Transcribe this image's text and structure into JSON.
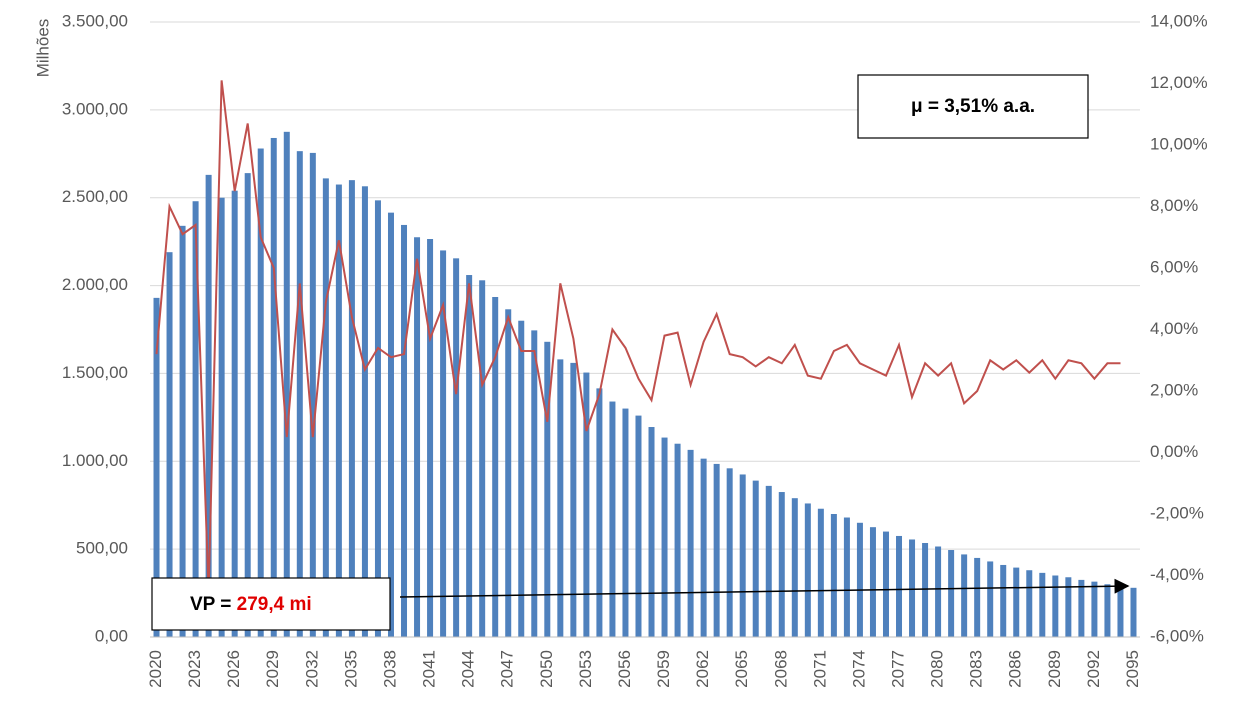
{
  "chart_data": {
    "type": "bar-line",
    "y_axis_label": "Milhões",
    "annotation_mu": "μ = 3,51% a.a.",
    "annotation_vp_label": "VP = ",
    "annotation_vp_value": "279,4 mi",
    "categories": [
      "2020",
      null,
      null,
      "2023",
      null,
      null,
      "2026",
      null,
      null,
      "2029",
      null,
      null,
      "2032",
      null,
      null,
      "2035",
      null,
      null,
      "2038",
      null,
      null,
      "2041",
      null,
      null,
      "2044",
      null,
      null,
      "2047",
      null,
      null,
      "2050",
      null,
      null,
      "2053",
      null,
      null,
      "2056",
      null,
      null,
      "2059",
      null,
      null,
      "2062",
      null,
      null,
      "2065",
      null,
      null,
      "2068",
      null,
      null,
      "2071",
      null,
      null,
      "2074",
      null,
      null,
      "2077",
      null,
      null,
      "2080",
      null,
      null,
      "2083",
      null,
      null,
      "2086",
      null,
      null,
      "2089",
      null,
      null,
      "2092",
      null,
      null,
      "2095"
    ],
    "series": [
      {
        "type": "bar",
        "color": "#4f81bd",
        "values": [
          1930,
          2190,
          2340,
          2480,
          2630,
          2500,
          2540,
          2640,
          2780,
          2840,
          2875,
          2765,
          2755,
          2610,
          2575,
          2600,
          2565,
          2485,
          2415,
          2345,
          2275,
          2265,
          2200,
          2155,
          2060,
          2030,
          1935,
          1865,
          1800,
          1745,
          1680,
          1580,
          1560,
          1505,
          1415,
          1340,
          1300,
          1260,
          1195,
          1135,
          1100,
          1065,
          1015,
          985,
          960,
          925,
          890,
          860,
          825,
          790,
          760,
          730,
          700,
          680,
          650,
          625,
          600,
          575,
          555,
          535,
          515,
          495,
          470,
          450,
          430,
          410,
          395,
          380,
          365,
          350,
          340,
          325,
          315,
          300,
          290,
          280
        ]
      },
      {
        "type": "line",
        "axis": "y2",
        "color": "#c0504d",
        "values": [
          3.2,
          8.0,
          7.1,
          7.4,
          -4.5,
          12.1,
          8.5,
          10.7,
          7.0,
          6.0,
          0.5,
          5.5,
          0.5,
          4.9,
          6.9,
          4.4,
          2.7,
          3.4,
          3.1,
          3.2,
          6.3,
          3.7,
          4.8,
          1.9,
          5.5,
          2.2,
          3.1,
          4.4,
          3.3,
          3.3,
          1.0,
          5.5,
          3.7,
          0.7,
          1.9,
          4.0,
          3.4,
          2.4,
          1.7,
          3.8,
          3.9,
          2.2,
          3.6,
          4.5,
          3.2,
          3.1,
          2.8,
          3.1,
          2.9,
          3.5,
          2.5,
          2.4,
          3.3,
          3.5,
          2.9,
          2.7,
          2.5,
          3.5,
          1.8,
          2.9,
          2.5,
          2.9,
          1.6,
          2.0,
          3.0,
          2.7,
          3.0,
          2.6,
          3.0,
          2.4,
          3.0,
          2.9,
          2.4,
          2.9,
          2.9,
          null
        ]
      }
    ],
    "ylim": [
      0,
      3500
    ],
    "yticks": [
      {
        "value": 0,
        "label": "0,00"
      },
      {
        "value": 500,
        "label": "500,00"
      },
      {
        "value": 1000,
        "label": "1.000,00"
      },
      {
        "value": 1500,
        "label": "1.500,00"
      },
      {
        "value": 2000,
        "label": "2.000,00"
      },
      {
        "value": 2500,
        "label": "2.500,00"
      },
      {
        "value": 3000,
        "label": "3.000,00"
      },
      {
        "value": 3500,
        "label": "3.500,00"
      }
    ],
    "y2lim": [
      -6,
      14
    ],
    "y2ticks": [
      {
        "value": -6,
        "label": "-6,00%"
      },
      {
        "value": -4,
        "label": "-4,00%"
      },
      {
        "value": -2,
        "label": "-2,00%"
      },
      {
        "value": 0,
        "label": "0,00%"
      },
      {
        "value": 2,
        "label": "2,00%"
      },
      {
        "value": 4,
        "label": "4,00%"
      },
      {
        "value": 6,
        "label": "6,00%"
      },
      {
        "value": 8,
        "label": "8,00%"
      },
      {
        "value": 10,
        "label": "10,00%"
      },
      {
        "value": 12,
        "label": "12,00%"
      },
      {
        "value": 14,
        "label": "14,00%"
      }
    ],
    "grid": true
  }
}
